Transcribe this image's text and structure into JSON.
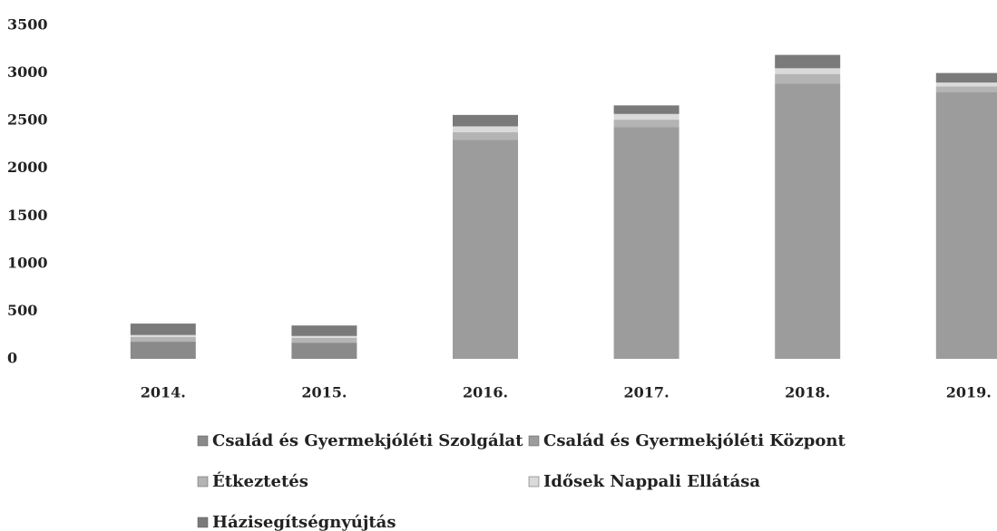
{
  "chart_data": {
    "type": "stacked_bar",
    "categories": [
      "2014.",
      "2015.",
      "2016.",
      "2017.",
      "2018.",
      "2019."
    ],
    "series": [
      {
        "name": "Család és Gyermekjóléti Szolgálat",
        "color": "#8a8a8a",
        "values": [
          180,
          170,
          0,
          0,
          0,
          0
        ]
      },
      {
        "name": "Család és Gyermekjóléti Központ",
        "color": "#9c9c9c",
        "values": [
          0,
          0,
          2300,
          2430,
          2890,
          2800
        ]
      },
      {
        "name": "Étkeztetés",
        "color": "#b4b4b4",
        "values": [
          50,
          50,
          80,
          80,
          100,
          60
        ]
      },
      {
        "name": "Idősek Nappali Ellátása",
        "color": "#dadada",
        "values": [
          20,
          20,
          60,
          60,
          60,
          40
        ]
      },
      {
        "name": "Házisegítségnyújtás",
        "color": "#7a7a7a",
        "values": [
          120,
          110,
          120,
          90,
          140,
          100
        ]
      }
    ],
    "ylim": [
      0,
      3500
    ],
    "yticks": [
      0,
      500,
      1000,
      1500,
      2000,
      2500,
      3000,
      3500
    ],
    "grid": false
  }
}
